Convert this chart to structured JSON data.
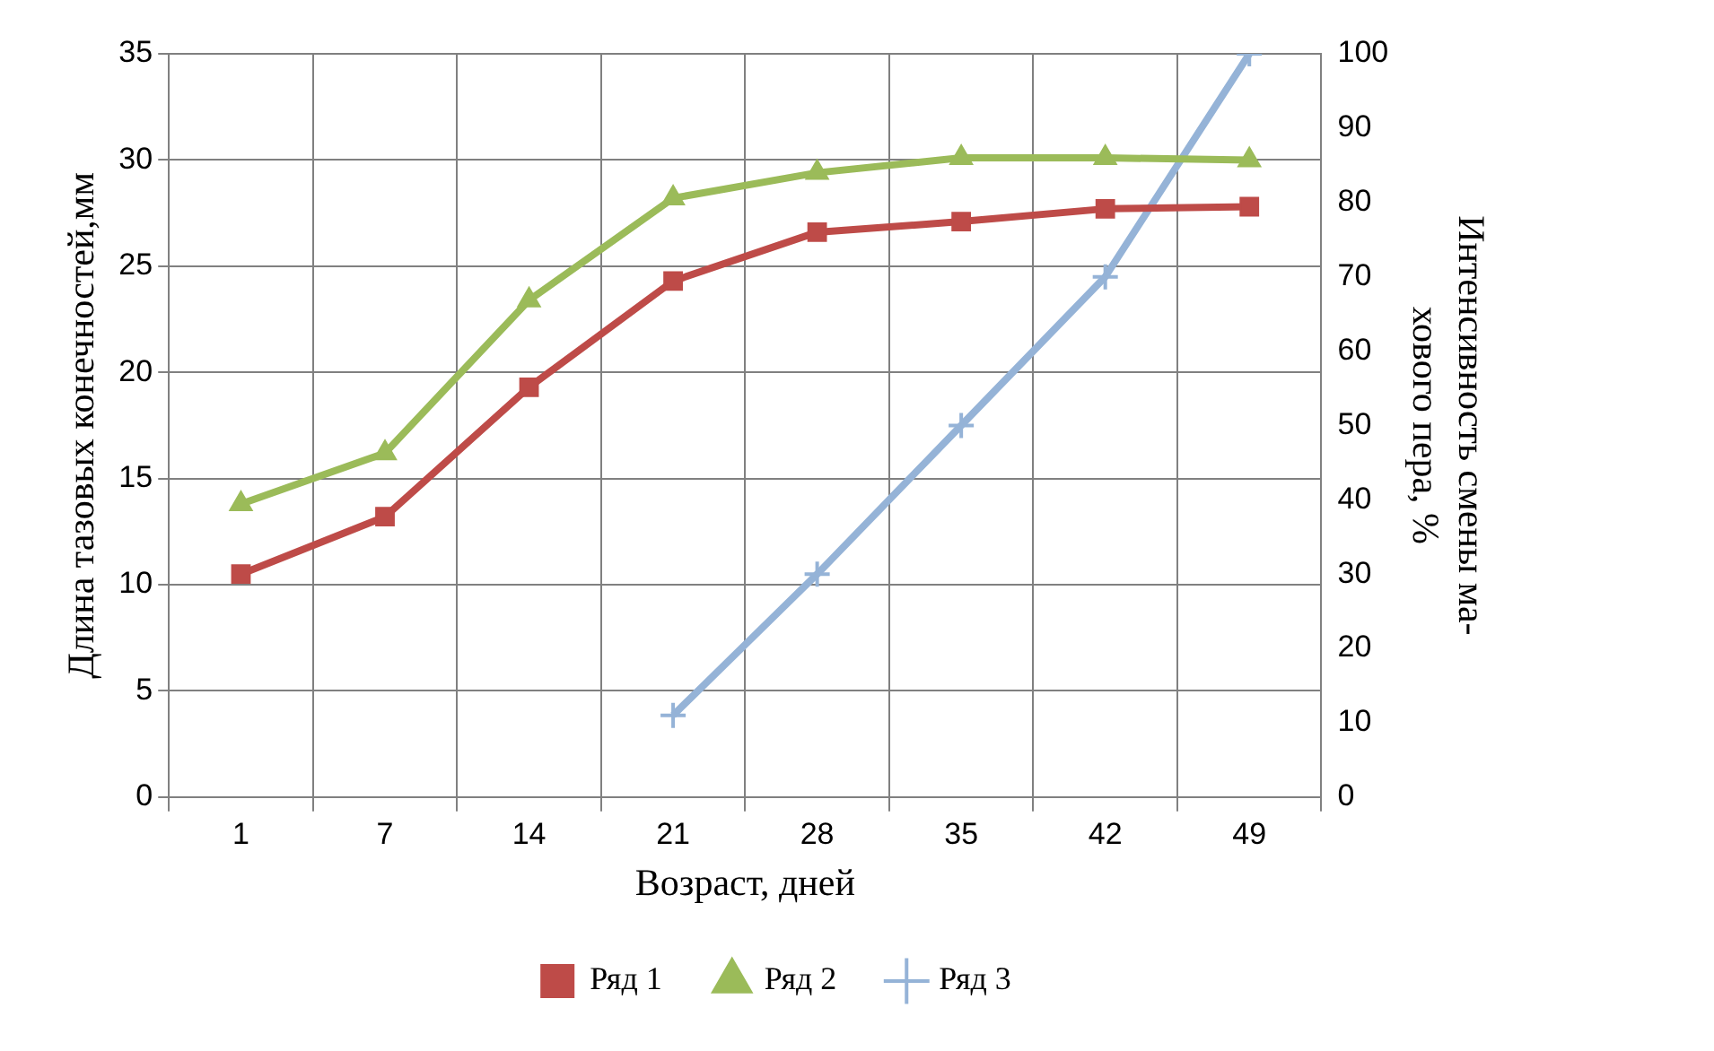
{
  "chart_data": {
    "type": "line",
    "xlabel": "Возраст, дней",
    "ylabel": "Длина тазовых конечностей,мм",
    "y2label": "Интенсивность смены ма-\nхового пера, %",
    "categories": [
      "1",
      "7",
      "14",
      "21",
      "28",
      "35",
      "42",
      "49"
    ],
    "series": [
      {
        "name": "Ряд 1",
        "color": "#be4b48",
        "marker": "square",
        "values": [
          10.5,
          13.2,
          19.3,
          24.3,
          26.6,
          27.1,
          27.7,
          27.8
        ]
      },
      {
        "name": "Ряд 2",
        "color": "#9bbb59",
        "marker": "triangle",
        "values": [
          13.8,
          16.2,
          23.4,
          28.2,
          29.4,
          30.1,
          30.1,
          30.0
        ]
      },
      {
        "name": "Ряд 3",
        "color": "#95b3d7",
        "marker": "cross",
        "axis": "y2",
        "values": [
          null,
          null,
          null,
          11,
          30,
          50,
          70,
          100
        ]
      }
    ],
    "ylim": [
      0,
      35
    ],
    "yticks": [
      0,
      5,
      10,
      15,
      20,
      25,
      30,
      35
    ],
    "y2lim": [
      0,
      100
    ],
    "y2ticks": [
      0,
      10,
      20,
      30,
      40,
      50,
      60,
      70,
      80,
      90,
      100
    ],
    "grid": true,
    "legend": "bottom",
    "line_style": "solid"
  }
}
